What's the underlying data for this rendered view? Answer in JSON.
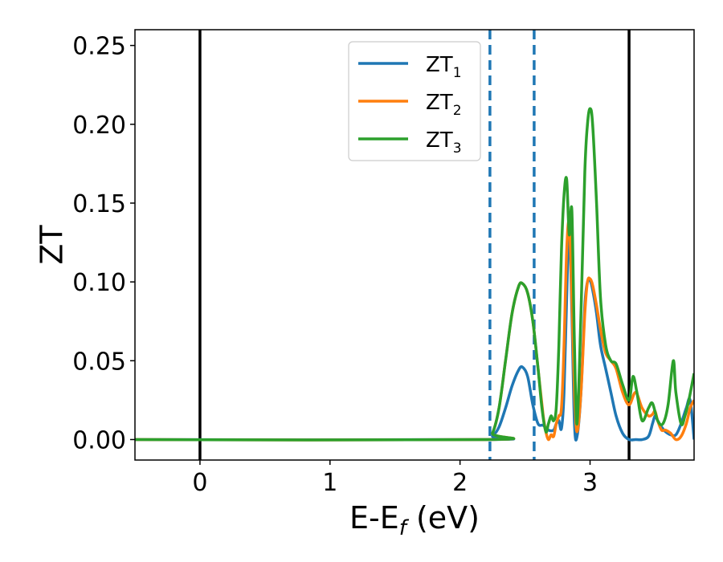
{
  "chart_data": {
    "type": "line",
    "xlabel_main": "E-E",
    "xlabel_sub": "f",
    "xlabel_unit": " (eV)",
    "ylabel": "ZT",
    "xlim": [
      -0.5,
      3.8
    ],
    "ylim": [
      -0.013,
      0.26
    ],
    "x_ticks": [
      0,
      1,
      2,
      3
    ],
    "x_tick_labels": [
      "0",
      "1",
      "2",
      "3"
    ],
    "y_ticks": [
      0.0,
      0.05,
      0.1,
      0.15,
      0.2,
      0.25
    ],
    "y_tick_labels": [
      "0.00",
      "0.05",
      "0.10",
      "0.15",
      "0.20",
      "0.25"
    ],
    "grid": false,
    "legend_position": "top-center",
    "vlines_solid": [
      0.0,
      3.3
    ],
    "vlines_dashed": [
      2.23,
      2.57
    ],
    "vline_solid_color": "#000000",
    "vline_dashed_color": "#1f77b4",
    "series": [
      {
        "name": "ZT",
        "sub": "1",
        "color": "#1f77b4",
        "x": [
          -0.5,
          2.2,
          2.25,
          2.3,
          2.35,
          2.4,
          2.45,
          2.48,
          2.52,
          2.56,
          2.6,
          2.64,
          2.68,
          2.72,
          2.74,
          2.76,
          2.78,
          2.8,
          2.82,
          2.84,
          2.86,
          2.88,
          2.9,
          2.93,
          2.96,
          2.98,
          3.0,
          3.02,
          3.05,
          3.08,
          3.12,
          3.16,
          3.2,
          3.25,
          3.3,
          3.35,
          3.4,
          3.45,
          3.48,
          3.5,
          3.52,
          3.55,
          3.58,
          3.62,
          3.66,
          3.7,
          3.74,
          3.77,
          3.8
        ],
        "y": [
          0.0,
          0.0,
          0.002,
          0.008,
          0.02,
          0.034,
          0.044,
          0.046,
          0.04,
          0.022,
          0.01,
          0.009,
          0.006,
          0.006,
          0.01,
          0.012,
          0.007,
          0.03,
          0.09,
          0.135,
          0.08,
          0.01,
          0.002,
          0.03,
          0.085,
          0.1,
          0.101,
          0.095,
          0.08,
          0.06,
          0.045,
          0.03,
          0.015,
          0.004,
          0.0,
          0.0,
          0.0,
          0.002,
          0.01,
          0.015,
          0.012,
          0.008,
          0.005,
          0.003,
          0.003,
          0.01,
          0.02,
          0.025,
          0.0
        ]
      },
      {
        "name": "ZT",
        "sub": "2",
        "color": "#ff7f0e",
        "x": [
          -0.5,
          2.2,
          2.25,
          2.3,
          2.35,
          2.4,
          2.45,
          2.48,
          2.52,
          2.56,
          2.6,
          2.64,
          2.66,
          2.68,
          2.7,
          2.72,
          2.74,
          2.76,
          2.78,
          2.8,
          2.82,
          2.84,
          2.86,
          2.88,
          2.9,
          2.93,
          2.96,
          2.98,
          3.0,
          3.02,
          3.05,
          3.08,
          3.12,
          3.16,
          3.2,
          3.25,
          3.3,
          3.35,
          3.4,
          3.45,
          3.48,
          3.5,
          3.52,
          3.55,
          3.58,
          3.62,
          3.66,
          3.7,
          3.74,
          3.77,
          3.8
        ],
        "y": [
          0.0,
          0.0,
          0.004,
          0.02,
          0.05,
          0.08,
          0.097,
          0.099,
          0.093,
          0.075,
          0.045,
          0.015,
          0.005,
          0.0,
          0.003,
          0.002,
          0.01,
          0.015,
          0.02,
          0.06,
          0.12,
          0.137,
          0.09,
          0.03,
          0.005,
          0.03,
          0.08,
          0.1,
          0.102,
          0.098,
          0.085,
          0.07,
          0.055,
          0.05,
          0.045,
          0.03,
          0.022,
          0.03,
          0.02,
          0.015,
          0.016,
          0.018,
          0.012,
          0.006,
          0.006,
          0.004,
          0.0,
          0.002,
          0.01,
          0.02,
          0.025
        ]
      },
      {
        "name": "ZT",
        "sub": "3",
        "color": "#2ca02c",
        "x": [
          -0.5,
          2.2,
          2.25,
          2.3,
          2.35,
          2.4,
          2.45,
          2.48,
          2.52,
          2.56,
          2.6,
          2.63,
          2.66,
          2.68,
          2.7,
          2.72,
          2.74,
          2.76,
          2.78,
          2.8,
          2.82,
          2.84,
          2.86,
          2.88,
          2.9,
          2.93,
          2.96,
          2.98,
          3.0,
          3.02,
          3.05,
          3.08,
          3.12,
          3.16,
          3.2,
          3.25,
          3.3,
          3.33,
          3.36,
          3.4,
          3.45,
          3.48,
          3.52,
          3.56,
          3.6,
          3.64,
          3.66,
          3.7,
          3.73,
          3.76,
          3.8
        ],
        "y": [
          0.0,
          0.0,
          0.004,
          0.02,
          0.05,
          0.08,
          0.097,
          0.099,
          0.093,
          0.075,
          0.045,
          0.02,
          0.005,
          0.01,
          0.015,
          0.012,
          0.02,
          0.06,
          0.12,
          0.155,
          0.165,
          0.13,
          0.145,
          0.06,
          0.01,
          0.08,
          0.17,
          0.2,
          0.21,
          0.2,
          0.15,
          0.09,
          0.06,
          0.05,
          0.048,
          0.035,
          0.025,
          0.04,
          0.03,
          0.012,
          0.02,
          0.023,
          0.012,
          0.01,
          0.022,
          0.05,
          0.03,
          0.01,
          0.015,
          0.025,
          0.042
        ]
      }
    ]
  }
}
